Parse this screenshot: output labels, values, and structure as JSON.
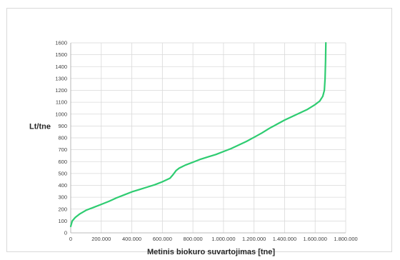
{
  "chart_data": {
    "type": "line",
    "title": "",
    "xlabel": "Metinis biokuro suvartojimas [tne]",
    "ylabel": "Lt/tne",
    "xlim": [
      0,
      1800000
    ],
    "ylim": [
      0,
      1600
    ],
    "x_ticks": [
      0,
      200000,
      400000,
      600000,
      800000,
      1000000,
      1200000,
      1400000,
      1600000,
      1800000
    ],
    "x_tick_labels": [
      "0",
      "200.000",
      "400.000",
      "600.000",
      "800.000",
      "1.000.000",
      "1.200.000",
      "1.400.000",
      "1.600.000",
      "1.800.000"
    ],
    "y_ticks": [
      0,
      100,
      200,
      300,
      400,
      500,
      600,
      700,
      800,
      900,
      1000,
      1100,
      1200,
      1300,
      1400,
      1500,
      1600
    ],
    "y_tick_labels": [
      "0",
      "100",
      "200",
      "300",
      "400",
      "500",
      "600",
      "700",
      "800",
      "900",
      "1000",
      "1100",
      "1200",
      "1300",
      "1400",
      "1500",
      "1600"
    ],
    "grid": true,
    "legend": false,
    "series": [
      {
        "color": "#2ecc71",
        "x": [
          0,
          10000,
          30000,
          60000,
          100000,
          150000,
          200000,
          250000,
          300000,
          350000,
          400000,
          450000,
          500000,
          550000,
          600000,
          650000,
          670000,
          690000,
          710000,
          750000,
          800000,
          850000,
          900000,
          950000,
          1000000,
          1050000,
          1100000,
          1150000,
          1200000,
          1250000,
          1300000,
          1350000,
          1400000,
          1450000,
          1500000,
          1550000,
          1600000,
          1630000,
          1650000,
          1660000,
          1665000,
          1668000,
          1670000
        ],
        "y": [
          55,
          100,
          130,
          160,
          190,
          215,
          240,
          265,
          295,
          320,
          345,
          365,
          385,
          405,
          430,
          460,
          490,
          525,
          545,
          570,
          595,
          620,
          640,
          660,
          685,
          710,
          740,
          770,
          805,
          840,
          880,
          915,
          950,
          980,
          1010,
          1040,
          1080,
          1110,
          1150,
          1200,
          1300,
          1450,
          1600
        ]
      }
    ]
  }
}
